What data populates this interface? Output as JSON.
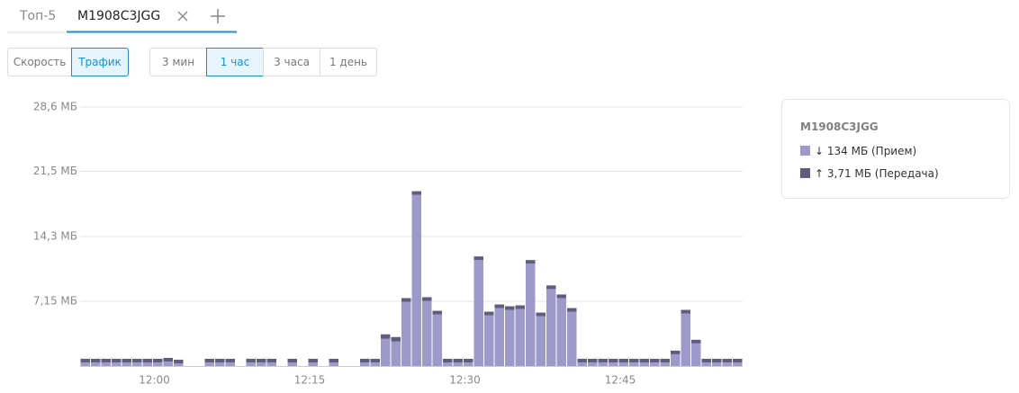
{
  "tabs": [
    "Топ-5",
    "M1908C3JGG"
  ],
  "mode_buttons": [
    "Скорость",
    "Трафик"
  ],
  "range_buttons": [
    "3 мин",
    "1 час",
    "3 часа",
    "1 день"
  ],
  "chart_data": {
    "type": "bar",
    "stacked": true,
    "legend_title": "M1908C3JGG",
    "categories": [
      null,
      null,
      null,
      null,
      null,
      null,
      null,
      "12:00",
      null,
      null,
      null,
      null,
      null,
      null,
      null,
      null,
      null,
      null,
      null,
      null,
      null,
      null,
      "12:15",
      null,
      null,
      null,
      null,
      null,
      null,
      null,
      null,
      null,
      null,
      null,
      null,
      null,
      null,
      "12:30",
      null,
      null,
      null,
      null,
      null,
      null,
      null,
      null,
      null,
      null,
      null,
      null,
      null,
      null,
      "12:45",
      null,
      null,
      null,
      null,
      null,
      null,
      null,
      null,
      null,
      null,
      null
    ],
    "series": [
      {
        "name": "↓ 134 МБ (Прием)",
        "color": "#9d9aca",
        "values": [
          0.4,
          0.4,
          0.4,
          0.4,
          0.4,
          0.4,
          0.4,
          0.4,
          0.5,
          0.3,
          0,
          0,
          0.4,
          0.4,
          0.4,
          0,
          0.4,
          0.4,
          0.4,
          0,
          0.4,
          0,
          0.4,
          0,
          0.4,
          0,
          0,
          0.4,
          0.4,
          3.0,
          2.7,
          7.1,
          18.9,
          7.2,
          5.7,
          0.4,
          0.4,
          0.4,
          11.7,
          5.6,
          6.4,
          6.2,
          6.3,
          11.3,
          5.5,
          8.5,
          7.5,
          6.0,
          0.4,
          0.4,
          0.4,
          0.4,
          0.4,
          0.4,
          0.4,
          0.4,
          0.4,
          1.3,
          5.8,
          2.5,
          0.4,
          0.4,
          0.4,
          0.4
        ]
      },
      {
        "name": "↑ 3,71 МБ (Передача)",
        "color": "#5f5c7e",
        "values": [
          0.4,
          0.4,
          0.4,
          0.4,
          0.4,
          0.4,
          0.4,
          0.4,
          0.4,
          0.4,
          0,
          0,
          0.4,
          0.4,
          0.4,
          0,
          0.4,
          0.4,
          0.4,
          0,
          0.4,
          0,
          0.4,
          0,
          0.4,
          0,
          0,
          0.4,
          0.4,
          0.5,
          0.5,
          0.4,
          0.4,
          0.4,
          0.4,
          0.4,
          0.4,
          0.4,
          0.4,
          0.4,
          0.4,
          0.4,
          0.4,
          0.4,
          0.4,
          0.4,
          0.4,
          0.4,
          0.4,
          0.4,
          0.4,
          0.4,
          0.4,
          0.4,
          0.4,
          0.4,
          0.4,
          0.4,
          0.4,
          0.4,
          0.4,
          0.4,
          0.4,
          0.4
        ]
      }
    ],
    "ylim": [
      0,
      28.6
    ],
    "yticks": [
      {
        "value": 7.15,
        "label": "7,15 МБ"
      },
      {
        "value": 14.3,
        "label": "14,3 МБ"
      },
      {
        "value": 21.5,
        "label": "21,5 МБ"
      },
      {
        "value": 28.6,
        "label": "28,6 МБ"
      }
    ],
    "grid": true
  }
}
